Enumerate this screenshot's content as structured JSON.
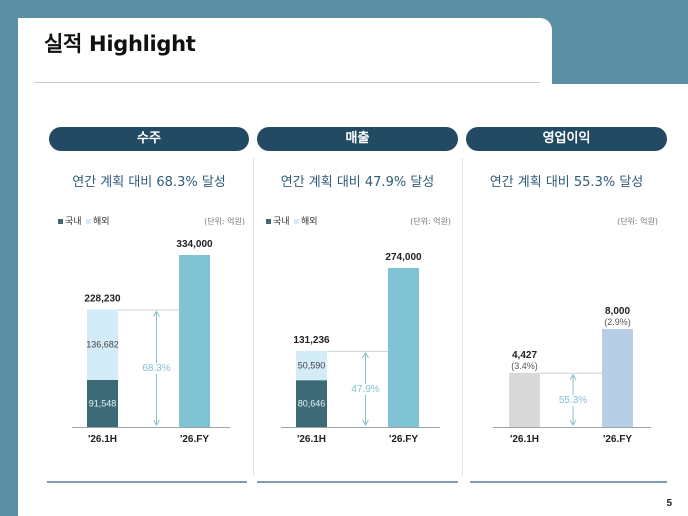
{
  "header": {
    "title": "실적 Highlight"
  },
  "page_number": "5",
  "colors": {
    "navy": "#234a63",
    "domestic": "#3c6a76",
    "overseas": "#d4ecf7",
    "plan_blue": "#7fc3d4",
    "op_actual": "#d9d9d9",
    "op_plan": "#b8cde6",
    "accent_text": "#7fc3d4",
    "subtitle": "#2f5c78"
  },
  "chart_data": [
    {
      "type": "bar",
      "title": "수주",
      "subtitle": "연간 계획 대비 68.3% 달성",
      "unit": "(단위: 억원)",
      "legend": [
        "국내",
        "해외"
      ],
      "categories": [
        "'26.1H",
        "'26.FY"
      ],
      "totals": [
        228230,
        334000
      ],
      "totals_label": [
        "228,230",
        "334,000"
      ],
      "series": [
        {
          "name": "국내",
          "values": [
            91548,
            null
          ],
          "labels": [
            "91,548",
            ""
          ]
        },
        {
          "name": "해외",
          "values": [
            136682,
            null
          ],
          "labels": [
            "136,682",
            ""
          ]
        }
      ],
      "achievement": "68.3%",
      "ylim": [
        0,
        334000
      ]
    },
    {
      "type": "bar",
      "title": "매출",
      "subtitle": "연간 계획 대비 47.9% 달성",
      "unit": "(단위: 억원)",
      "legend": [
        "국내",
        "해외"
      ],
      "categories": [
        "'26.1H",
        "'26.FY"
      ],
      "totals": [
        131236,
        274000
      ],
      "totals_label": [
        "131,236",
        "274,000"
      ],
      "series": [
        {
          "name": "국내",
          "values": [
            80646,
            null
          ],
          "labels": [
            "80,646",
            ""
          ]
        },
        {
          "name": "해외",
          "values": [
            50590,
            null
          ],
          "labels": [
            "50,590",
            ""
          ]
        }
      ],
      "achievement": "47.9%",
      "ylim": [
        0,
        274000
      ]
    },
    {
      "type": "bar",
      "title": "영업이익",
      "subtitle": "연간 계획 대비 55.3% 달성",
      "unit": "(단위: 억원)",
      "legend": [],
      "categories": [
        "'26.1H",
        "'26.FY"
      ],
      "totals": [
        4427,
        8000
      ],
      "totals_label": [
        "4,427",
        "8,000"
      ],
      "margins": [
        "(3.4%)",
        "(2.9%)"
      ],
      "series": [],
      "achievement": "55.3%",
      "ylim": [
        0,
        8000
      ]
    }
  ]
}
